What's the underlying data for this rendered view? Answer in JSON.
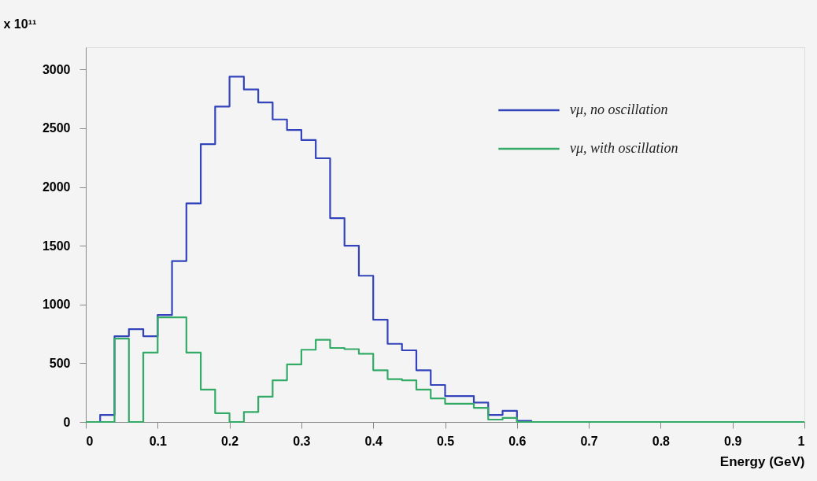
{
  "chart_data": {
    "type": "histogram",
    "xlabel": "Energy (GeV)",
    "ylabel": "x 10¹¹",
    "bins": [
      0,
      0.02,
      0.04,
      0.06,
      0.08,
      0.1,
      0.12,
      0.14,
      0.16,
      0.18,
      0.2,
      0.22,
      0.24,
      0.26,
      0.28,
      0.3,
      0.32,
      0.34,
      0.36,
      0.38,
      0.4,
      0.42,
      0.44,
      0.46,
      0.48,
      0.5,
      0.52,
      0.54,
      0.56,
      0.58,
      0.6,
      0.62,
      0.64,
      0.66,
      0.68,
      0.7,
      0.72,
      0.74,
      0.76,
      0.78,
      0.8,
      0.82,
      0.84,
      0.86,
      0.88,
      0.9,
      0.92,
      0.94,
      0.96,
      0.98,
      1
    ],
    "series": [
      {
        "name": "νμ, no oscillation",
        "color": "#3344bb",
        "values": [
          0,
          60,
          730,
          790,
          730,
          910,
          1370,
          1860,
          2365,
          2685,
          2940,
          2830,
          2720,
          2575,
          2485,
          2400,
          2245,
          1735,
          1500,
          1245,
          870,
          665,
          610,
          440,
          315,
          220,
          220,
          165,
          60,
          95,
          10,
          0,
          0,
          0,
          0,
          0,
          0,
          0,
          0,
          0,
          0,
          0,
          0,
          0,
          0,
          0,
          0,
          0,
          0,
          0
        ]
      },
      {
        "name": "νμ, with oscillation",
        "color": "#33aa66",
        "values": [
          0,
          0,
          710,
          0,
          590,
          890,
          890,
          590,
          275,
          75,
          0,
          85,
          215,
          355,
          490,
          615,
          700,
          630,
          620,
          580,
          440,
          365,
          355,
          275,
          200,
          155,
          155,
          120,
          20,
          35,
          0,
          0,
          0,
          0,
          0,
          0,
          0,
          0,
          0,
          0,
          0,
          0,
          0,
          0,
          0,
          0,
          0,
          0,
          0,
          0
        ]
      }
    ],
    "xlim": [
      0,
      1
    ],
    "ylim": [
      0,
      3190
    ],
    "xticks": [
      0,
      0.1,
      0.2,
      0.3,
      0.4,
      0.5,
      0.6,
      0.7,
      0.8,
      0.9,
      1
    ],
    "yticks": [
      0,
      500,
      1000,
      1500,
      2000,
      2500,
      3000
    ],
    "legend": "top right"
  }
}
